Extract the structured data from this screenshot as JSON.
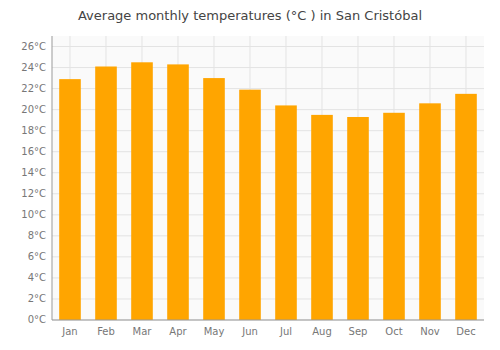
{
  "chart_data": {
    "type": "bar",
    "title": "Average monthly temperatures (°C ) in San Cristóbal",
    "categories": [
      "Jan",
      "Feb",
      "Mar",
      "Apr",
      "May",
      "Jun",
      "Jul",
      "Aug",
      "Sep",
      "Oct",
      "Nov",
      "Dec"
    ],
    "values": [
      22.9,
      24.1,
      24.5,
      24.3,
      23.0,
      21.9,
      20.4,
      19.5,
      19.3,
      19.7,
      20.6,
      21.5
    ],
    "color": "#FFA500",
    "ylim": [
      0,
      27
    ],
    "yticks": [
      {
        "value": 0,
        "label": "0°C"
      },
      {
        "value": 2,
        "label": "2°C"
      },
      {
        "value": 4,
        "label": "4°C"
      },
      {
        "value": 6,
        "label": "6°C"
      },
      {
        "value": 8,
        "label": "8°C"
      },
      {
        "value": 10,
        "label": "10°C"
      },
      {
        "value": 12,
        "label": "12°C"
      },
      {
        "value": 14,
        "label": "14°C"
      },
      {
        "value": 16,
        "label": "16°C"
      },
      {
        "value": 18,
        "label": "18°C"
      },
      {
        "value": 20,
        "label": "20°C"
      },
      {
        "value": 22,
        "label": "22°C"
      },
      {
        "value": 24,
        "label": "24°C"
      },
      {
        "value": 26,
        "label": "26°C"
      }
    ],
    "grid": true
  }
}
